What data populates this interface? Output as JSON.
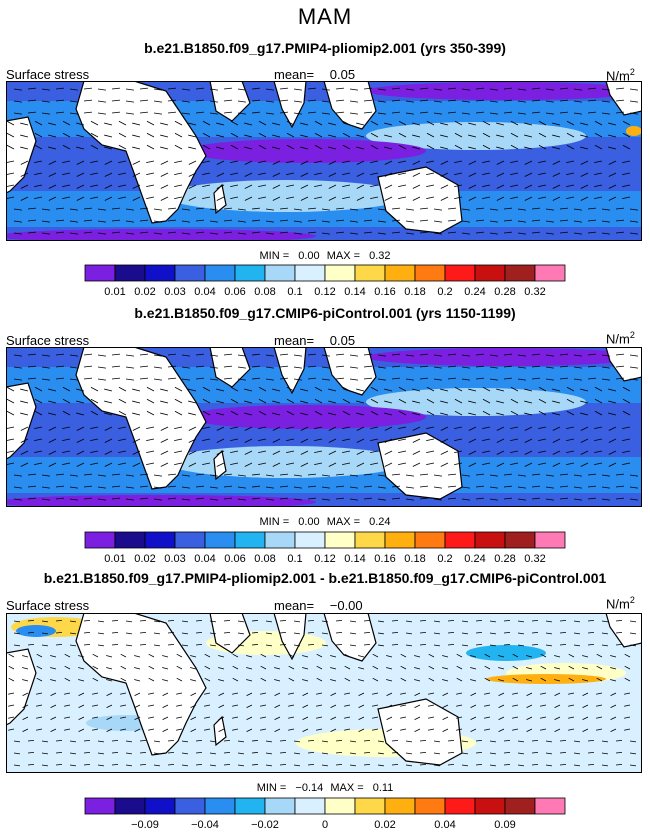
{
  "season": "MAM",
  "panels": [
    {
      "title": "b.e21.B1850.f09_g17.PMIP4-pliomip2.001 (yrs 350-399)",
      "field_label": "Surface stress",
      "mean_label": "mean=",
      "mean_value": "0.05",
      "units": "N/m",
      "units_sup": "2",
      "min_label": "MIN =",
      "min_value": "0.00",
      "max_label": "MAX =",
      "max_value": "0.32",
      "colorbar": "absolute"
    },
    {
      "title": "b.e21.B1850.f09_g17.CMIP6-piControl.001 (yrs 1150-1199)",
      "field_label": "Surface stress",
      "mean_label": "mean=",
      "mean_value": "0.05",
      "units": "N/m",
      "units_sup": "2",
      "min_label": "MIN =",
      "min_value": "0.00",
      "max_label": "MAX =",
      "max_value": "0.24",
      "colorbar": "absolute"
    },
    {
      "title": "b.e21.B1850.f09_g17.PMIP4-pliomip2.001 - b.e21.B1850.f09_g17.CMIP6-piControl.001",
      "field_label": "Surface stress",
      "mean_label": "mean=",
      "mean_value": "−0.00",
      "units": "N/m",
      "units_sup": "2",
      "min_label": "MIN =",
      "min_value": "−0.14",
      "max_label": "MAX =",
      "max_value": "0.11",
      "colorbar": "difference"
    }
  ],
  "colorbars": {
    "absolute": {
      "colors": [
        "#7b1fe0",
        "#1a0c8c",
        "#1010c8",
        "#3a5fe0",
        "#2a8ef0",
        "#22b4f0",
        "#a8d8f8",
        "#d8f0ff",
        "#ffffc8",
        "#ffd84a",
        "#ffb010",
        "#ff7a10",
        "#ff1a1a",
        "#c81010",
        "#a02020",
        "#ff7ab4"
      ],
      "tick_labels": [
        "0.01",
        "0.02",
        "0.03",
        "0.04",
        "0.06",
        "0.08",
        "0.1",
        "0.12",
        "0.14",
        "0.16",
        "0.18",
        "0.2",
        "0.24",
        "0.28",
        "0.32"
      ]
    },
    "difference": {
      "colors": [
        "#7b1fe0",
        "#1a0c8c",
        "#1010c8",
        "#3a5fe0",
        "#2a8ef0",
        "#22b4f0",
        "#a8d8f8",
        "#d8f0ff",
        "#ffffc8",
        "#ffd84a",
        "#ffb010",
        "#ff7a10",
        "#ff1a1a",
        "#c81010",
        "#a02020",
        "#ff7ab4"
      ],
      "tick_labels": [
        "",
        "−0.09",
        "",
        "−0.04",
        "",
        "−0.02",
        "",
        "0",
        "",
        "0.02",
        "",
        "0.04",
        "",
        "0.09",
        ""
      ]
    }
  },
  "chart_data": [
    {
      "type": "heatmap",
      "title": "b.e21.B1850.f09_g17.PMIP4-pliomip2.001 (yrs 350-399)",
      "variable": "Surface stress",
      "units": "N/m2",
      "mean": 0.05,
      "min": 0.0,
      "max": 0.32,
      "levels": [
        0.01,
        0.02,
        0.03,
        0.04,
        0.06,
        0.08,
        0.1,
        0.12,
        0.14,
        0.16,
        0.18,
        0.2,
        0.24,
        0.28,
        0.32
      ],
      "overlay": "wind stress vectors"
    },
    {
      "type": "heatmap",
      "title": "b.e21.B1850.f09_g17.CMIP6-piControl.001 (yrs 1150-1199)",
      "variable": "Surface stress",
      "units": "N/m2",
      "mean": 0.05,
      "min": 0.0,
      "max": 0.24,
      "levels": [
        0.01,
        0.02,
        0.03,
        0.04,
        0.06,
        0.08,
        0.1,
        0.12,
        0.14,
        0.16,
        0.18,
        0.2,
        0.24,
        0.28,
        0.32
      ],
      "overlay": "wind stress vectors"
    },
    {
      "type": "heatmap",
      "title": "b.e21.B1850.f09_g17.PMIP4-pliomip2.001 - b.e21.B1850.f09_g17.CMIP6-piControl.001",
      "variable": "Surface stress",
      "units": "N/m2",
      "mean": -0.0,
      "min": -0.14,
      "max": 0.11,
      "levels": [
        -0.09,
        -0.04,
        -0.02,
        0,
        0.02,
        0.04,
        0.09
      ],
      "overlay": "wind stress difference vectors"
    }
  ]
}
